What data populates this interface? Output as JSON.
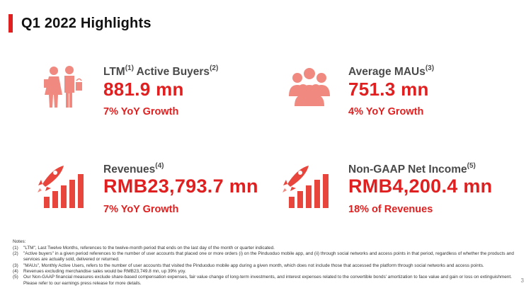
{
  "slide": {
    "title": "Q1 2022 Highlights",
    "accent_color": "#e02020",
    "page_number": "3"
  },
  "metrics": [
    {
      "icon": "shoppers-icon",
      "label": "LTM",
      "label_sup": "(1)",
      "label_rest": " Active Buyers",
      "label_sup2": "(2)",
      "value": "881.9 mn",
      "sub": "7% YoY Growth"
    },
    {
      "icon": "users-group-icon",
      "label": "Average MAUs",
      "label_sup": "(3)",
      "label_rest": "",
      "label_sup2": "",
      "value": "751.3 mn",
      "sub": "4% YoY Growth"
    },
    {
      "icon": "rocket-growth-icon",
      "label": "Revenues",
      "label_sup": "(4)",
      "label_rest": "",
      "label_sup2": "",
      "value": "RMB23,793.7 mn",
      "sub": "7% YoY Growth"
    },
    {
      "icon": "rocket-growth-icon",
      "label": "Non-GAAP Net Income",
      "label_sup": "(5)",
      "label_rest": "",
      "label_sup2": "",
      "value": "RMB4,200.4 mn",
      "sub": "18% of Revenues"
    }
  ],
  "notes": {
    "title": "Notes:",
    "items": [
      {
        "num": "(1)",
        "text": "\"LTM\", Last Twelve Months, references to the twelve-month period that ends on the last day of the month or quarter indicated."
      },
      {
        "num": "(2)",
        "text": "\"Active buyers\" in a given period references to the number of user accounts that placed one or more orders (i) on the Pinduoduo mobile app, and (ii) through social networks and access points in that period, regardless of whether the products and services are actually sold, delivered or returned."
      },
      {
        "num": "(3)",
        "text": "\"MAUs\", Monthly Active Users, refers to the number of user accounts that visited the Pinduoduo mobile app during a given month, which does not include those that accessed the platform through social networks and access points."
      },
      {
        "num": "(4)",
        "text": "Revenues excluding merchandise sales would be RMB23,749.8 mn, up 39% yoy."
      },
      {
        "num": "(5)",
        "text": "Our Non-GAAP financial measures exclude share-based compensation expenses, fair value change of long-term investments, and interest expenses related to the convertible bonds' amortization to face value and gain or loss on extinguishment. Please refer to our earnings press release for more details."
      }
    ]
  }
}
